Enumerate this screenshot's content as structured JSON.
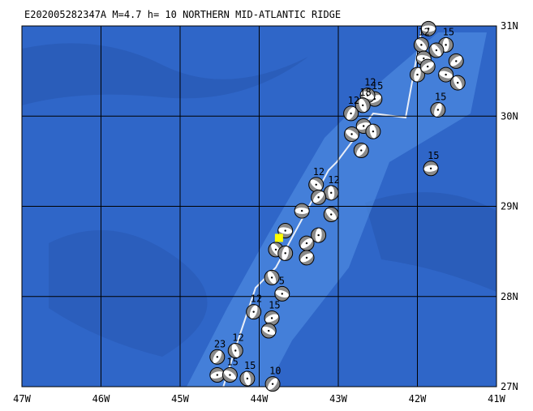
{
  "chart_data": {
    "type": "map",
    "title": "E202005282347A M=4.7 h= 10 NORTHERN MID-ATLANTIC RIDGE",
    "xlim": [
      -47,
      -41
    ],
    "ylim": [
      27,
      31
    ],
    "xticks": [
      {
        "value": -47,
        "label": "47W"
      },
      {
        "value": -46,
        "label": "46W"
      },
      {
        "value": -45,
        "label": "45W"
      },
      {
        "value": -44,
        "label": "44W"
      },
      {
        "value": -43,
        "label": "43W"
      },
      {
        "value": -42,
        "label": "42W"
      },
      {
        "value": -41,
        "label": "41W"
      }
    ],
    "yticks": [
      {
        "value": 27,
        "label": "27N"
      },
      {
        "value": 28,
        "label": "28N"
      },
      {
        "value": 29,
        "label": "29N"
      },
      {
        "value": 30,
        "label": "30N"
      },
      {
        "value": 31,
        "label": "31N"
      }
    ],
    "grid": true,
    "epicenter": {
      "lon": -43.75,
      "lat": 28.65,
      "color": "#ffff00"
    },
    "events": {
      "lon": [
        -41.86,
        -41.95,
        -41.64,
        -41.51,
        -41.92,
        -41.76,
        -42.0,
        -41.87,
        -41.64,
        -41.49,
        -41.74,
        -42.54,
        -42.63,
        -42.69,
        -42.84,
        -42.68,
        -42.83,
        -42.56,
        -42.71,
        -41.83,
        -43.28,
        -43.09,
        -43.25,
        -43.46,
        -43.09,
        -43.25,
        -43.4,
        -43.67,
        -43.79,
        -43.67,
        -43.4,
        -43.71,
        -43.84,
        -44.07,
        -43.84,
        -43.88,
        -44.3,
        -44.53,
        -44.53,
        -44.37,
        -44.15,
        -43.83
      ],
      "lat": [
        30.97,
        30.79,
        30.79,
        30.61,
        30.64,
        30.73,
        30.46,
        30.55,
        30.46,
        30.37,
        30.07,
        30.19,
        30.23,
        30.12,
        30.03,
        29.89,
        29.8,
        29.83,
        29.62,
        29.42,
        29.24,
        29.15,
        29.1,
        28.95,
        28.91,
        28.68,
        28.59,
        28.73,
        28.52,
        28.48,
        28.43,
        28.03,
        28.21,
        27.83,
        27.76,
        27.62,
        27.4,
        27.33,
        27.13,
        27.13,
        27.09,
        27.03
      ],
      "depth": [
        null,
        12,
        15,
        null,
        null,
        null,
        null,
        null,
        null,
        null,
        15,
        15,
        12,
        18,
        12,
        null,
        null,
        null,
        null,
        15,
        12,
        12,
        null,
        null,
        null,
        null,
        null,
        null,
        null,
        null,
        null,
        5,
        null,
        12,
        15,
        null,
        12,
        23,
        null,
        15,
        15,
        10
      ]
    }
  }
}
